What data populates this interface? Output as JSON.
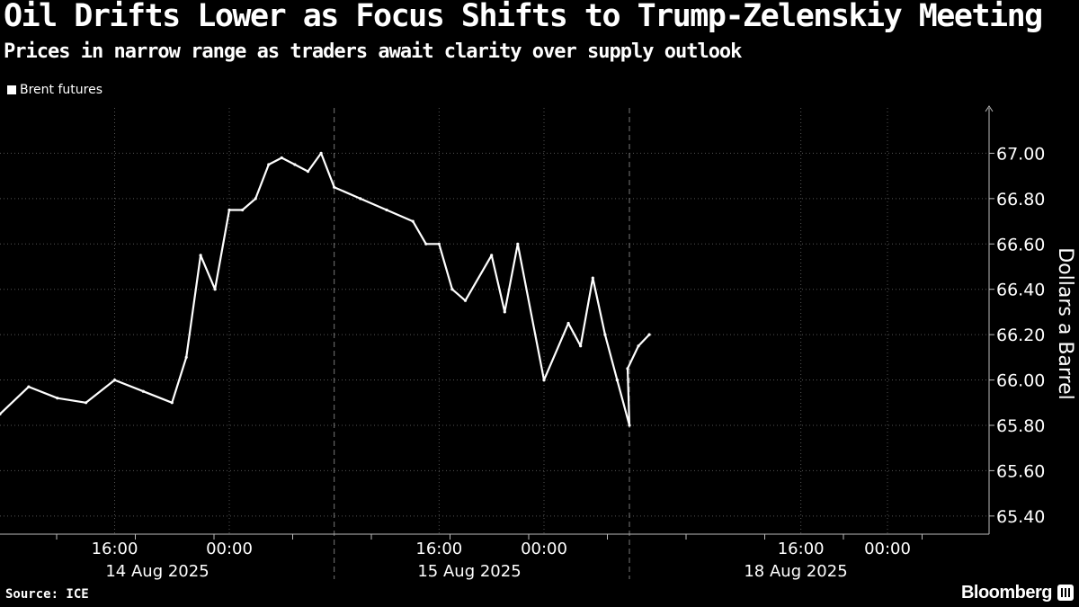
{
  "header": {
    "title": "Oil Drifts Lower as Focus Shifts to Trump-Zelenskiy Meeting",
    "subtitle": "Prices in narrow range as traders await clarity over supply outlook"
  },
  "footer": {
    "source": "Source: ICE",
    "brand": "Bloomberg",
    "brand_icon": "bloomberg-logo-icon"
  },
  "colors": {
    "background": "#000000",
    "series": "#ffffff",
    "grid": "#555555"
  },
  "chart_data": {
    "type": "line",
    "title": "Oil Drifts Lower as Focus Shifts to Trump-Zelenskiy Meeting",
    "subtitle": "Prices in narrow range as traders await clarity over supply outlook",
    "ylabel": "Dollars a Barrel",
    "xlabel": "",
    "y_axis_position": "right",
    "ylim": [
      65.32,
      67.2
    ],
    "yticks": [
      65.4,
      65.6,
      65.8,
      66.0,
      66.2,
      66.4,
      66.6,
      66.8,
      67.0
    ],
    "grid": true,
    "legend": "top-left",
    "series": [
      {
        "name": "Brent futures",
        "x": [
          "2025-08-14 08:00",
          "2025-08-14 10:00",
          "2025-08-14 12:00",
          "2025-08-14 14:00",
          "2025-08-14 16:00",
          "2025-08-14 18:00",
          "2025-08-14 20:00",
          "2025-08-14 21:00",
          "2025-08-14 22:00",
          "2025-08-14 23:00",
          "2025-08-15 00:00",
          "2025-08-15 01:00",
          "2025-08-15 02:00",
          "2025-08-15 03:00",
          "2025-08-15 04:00",
          "2025-08-15 05:00",
          "2025-08-15 06:00",
          "2025-08-15 07:00",
          "2025-08-15 08:00",
          "2025-08-15 10:00",
          "2025-08-15 12:00",
          "2025-08-15 14:00",
          "2025-08-15 15:00",
          "2025-08-15 16:00",
          "2025-08-15 17:00",
          "2025-08-15 18:00",
          "2025-08-15 20:00",
          "2025-08-15 21:00",
          "2025-08-15 22:00",
          "2025-08-16 00:00",
          "2025-08-16 02:00",
          "2025-08-16 03:00",
          "2025-08-16 04:00",
          "2025-08-16 05:00",
          "2025-08-16 06:00",
          "2025-08-16 07:00",
          "2025-08-18 00:00",
          "2025-08-18 01:00",
          "2025-08-18 02:00"
        ],
        "values": [
          65.85,
          65.97,
          65.92,
          65.9,
          66.0,
          65.95,
          65.9,
          66.1,
          66.55,
          66.4,
          66.75,
          66.75,
          66.8,
          66.95,
          66.98,
          66.95,
          66.92,
          67.0,
          66.85,
          66.8,
          66.75,
          66.7,
          66.6,
          66.6,
          66.4,
          66.35,
          66.55,
          66.3,
          66.6,
          66.0,
          66.25,
          66.15,
          66.45,
          66.2,
          66.0,
          65.8,
          66.05,
          66.15,
          66.2
        ]
      }
    ],
    "x_tick_labels": [
      {
        "label": "16:00",
        "date": "2025-08-14 16:00"
      },
      {
        "label": "00:00",
        "date": "2025-08-15 00:00"
      },
      {
        "label": "16:00",
        "date": "2025-08-15 16:00"
      },
      {
        "label": "00:00",
        "date": "2025-08-16 00:00"
      },
      {
        "label": "16:00",
        "date": "2025-08-18 16:00"
      },
      {
        "label": "00:00",
        "date": "2025-08-19 00:00"
      }
    ],
    "date_labels": [
      "14 Aug 2025",
      "15 Aug 2025",
      "18 Aug 2025"
    ]
  }
}
